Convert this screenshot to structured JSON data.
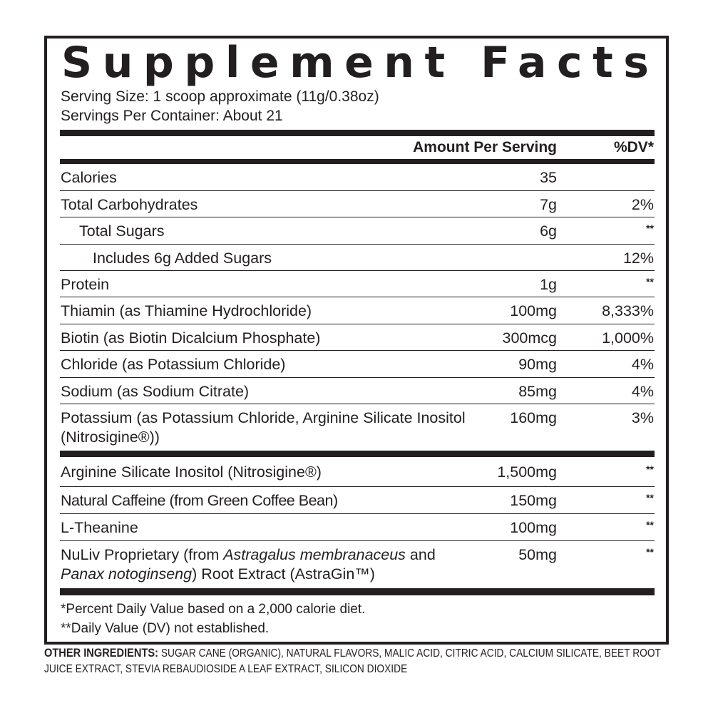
{
  "title": "Supplement Facts",
  "serving_size": "Serving Size: 1 scoop approximate (11g/0.38oz)",
  "servings_per_container": "Servings Per Container: About 21",
  "header": {
    "amount": "Amount Per Serving",
    "dv": "%DV*"
  },
  "rows": [
    {
      "name": "Calories",
      "amount": "35",
      "dv": ""
    },
    {
      "name": "Total Carbohydrates",
      "amount": "7g",
      "dv": "2%"
    },
    {
      "name": "Total Sugars",
      "amount": "6g",
      "dv": "**"
    },
    {
      "name": "Includes 6g Added Sugars",
      "amount": "",
      "dv": "12%"
    },
    {
      "name": "Protein",
      "amount": "1g",
      "dv": "**"
    },
    {
      "name": "Thiamin (as Thiamine Hydrochloride)",
      "amount": "100mg",
      "dv": "8,333%"
    },
    {
      "name": "Biotin (as Biotin Dicalcium Phosphate)",
      "amount": "300mcg",
      "dv": "1,000%"
    },
    {
      "name": "Chloride (as Potassium Chloride)",
      "amount": "90mg",
      "dv": "4%"
    },
    {
      "name": "Sodium (as Sodium Citrate)",
      "amount": "85mg",
      "dv": "4%"
    },
    {
      "name": "Potassium (as Potassium Chloride, Arginine Silicate Inositol (Nitrosigine®))",
      "amount": "160mg",
      "dv": "3%"
    }
  ],
  "rows2": [
    {
      "name": "Arginine Silicate Inositol (Nitrosigine®)",
      "amount": "1,500mg",
      "dv": "**"
    },
    {
      "name": "Natural Caffeine (from Green Coffee Bean)",
      "amount": "150mg",
      "dv": "**"
    },
    {
      "name": "L-Theanine",
      "amount": "100mg",
      "dv": "**"
    },
    {
      "name_parts": [
        "NuLiv Proprietary (from ",
        "Astragalus membranaceus",
        " and ",
        "Panax notoginseng",
        ") Root Extract (AstraGin™)"
      ],
      "amount": "50mg",
      "dv": "**"
    }
  ],
  "footnotes": [
    "*Percent Daily Value based on a 2,000 calorie diet.",
    "**Daily Value (DV) not established."
  ],
  "other_ingredients": {
    "label": "OTHER INGREDIENTS:",
    "text": " SUGAR CANE (ORGANIC), NATURAL FLAVORS, MALIC ACID, CITRIC ACID, CALCIUM SILICATE, BEET ROOT JUICE EXTRACT, STEVIA REBAUDIOSIDE A LEAF EXTRACT, SILICON DIOXIDE"
  }
}
